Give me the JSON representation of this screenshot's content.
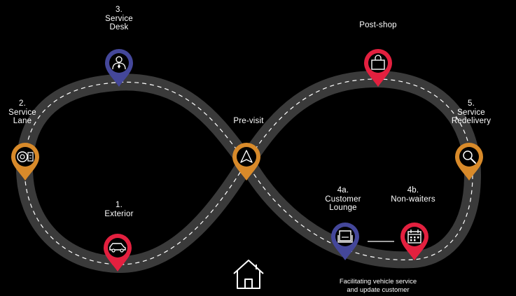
{
  "colors": {
    "background": "#000000",
    "road": "#3a3a3a",
    "road_dash": "#ffffff",
    "pin_blue": "#44479a",
    "pin_red": "#e3203f",
    "pin_orange": "#d88a2a",
    "pin_fill": "#000000",
    "text": "#ffffff"
  },
  "stops": [
    {
      "id": "exterior",
      "label": "1.\nExterior",
      "pin_color": "pin_red",
      "icon": "car-icon"
    },
    {
      "id": "service-lane",
      "label": "2.\nService\nLane",
      "pin_color": "pin_orange",
      "icon": "wheel-tools-icon"
    },
    {
      "id": "service-desk",
      "label": "3.\nService\nDesk",
      "pin_color": "pin_blue",
      "icon": "advisor-icon"
    },
    {
      "id": "pre-visit",
      "label": "Pre-visit",
      "pin_color": "pin_orange",
      "icon": "navigation-arrow-icon"
    },
    {
      "id": "post-shop",
      "label": "Post-shop",
      "pin_color": "pin_red",
      "icon": "shopping-bag-icon"
    },
    {
      "id": "service-redelivery",
      "label": "5.\nService\nRedelivery",
      "pin_color": "pin_orange",
      "icon": "magnifier-icon"
    },
    {
      "id": "customer-lounge",
      "label": "4a.\nCustomer\nLounge",
      "pin_color": "pin_blue",
      "icon": "lounge-chair-icon"
    },
    {
      "id": "non-waiters",
      "label": "4b.\nNon-waiters",
      "pin_color": "pin_red",
      "icon": "calendar-icon"
    }
  ],
  "note": "Facilitating vehicle service\nand update customer",
  "home_icon": "home-icon"
}
